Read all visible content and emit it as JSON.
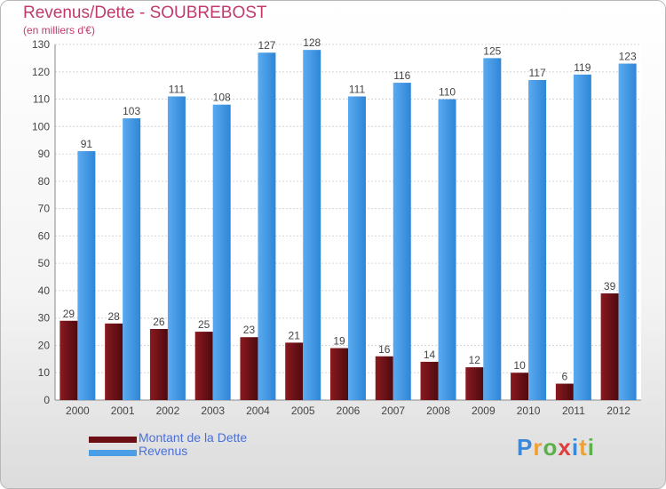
{
  "chart_data": {
    "type": "bar",
    "title": "Revenus/Dette - SOUBREBOST",
    "subtitle": "(en milliers d'€)",
    "categories": [
      "2000",
      "2001",
      "2002",
      "2003",
      "2004",
      "2005",
      "2006",
      "2007",
      "2008",
      "2009",
      "2010",
      "2011",
      "2012"
    ],
    "series": [
      {
        "name": "Montant de la Dette",
        "values": [
          29,
          28,
          26,
          25,
          23,
          21,
          19,
          16,
          14,
          12,
          10,
          6,
          39
        ],
        "color": "#6b0f14"
      },
      {
        "name": "Revenus",
        "values": [
          91,
          103,
          111,
          108,
          127,
          128,
          111,
          116,
          110,
          125,
          117,
          119,
          123
        ],
        "color": "#4a9ee6"
      }
    ],
    "ylim": [
      0,
      130
    ],
    "yticks": [
      0,
      10,
      20,
      30,
      40,
      50,
      60,
      70,
      80,
      90,
      100,
      110,
      120,
      130
    ],
    "grid": true,
    "legend": "bottom-left"
  },
  "logo": {
    "letters": [
      "P",
      "r",
      "o",
      "x",
      "i",
      "t",
      "i"
    ],
    "colors": [
      "#3c88d8",
      "#f0a030",
      "#5cb048",
      "#e03c3c",
      "#3c88d8",
      "#f0a030",
      "#5cb048"
    ]
  }
}
